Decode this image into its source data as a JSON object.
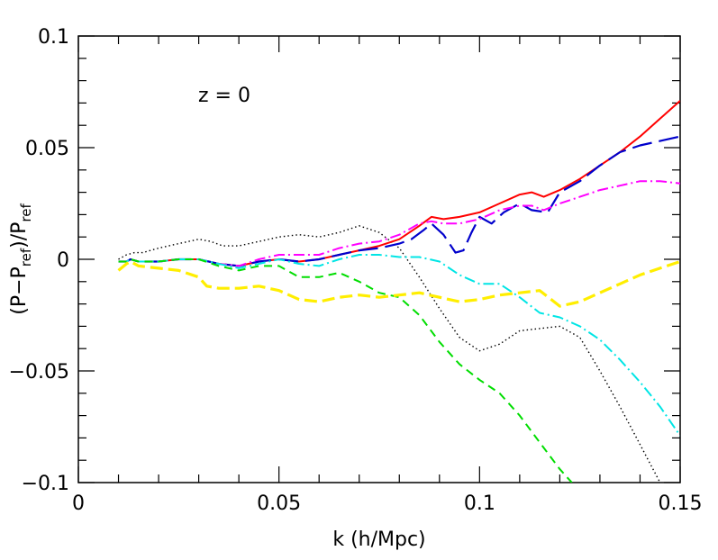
{
  "chart_data": {
    "type": "line",
    "annotation": "z = 0",
    "xlabel": "k (h/Mpc)",
    "ylabel": {
      "open": "(P",
      "minus": "−P",
      "sub_ref": "ref",
      "middle": ")/P",
      "sub_ref2": "ref"
    },
    "xlim": [
      0,
      0.15
    ],
    "ylim": [
      -0.1,
      0.1
    ],
    "xticks": [
      0,
      0.05,
      0.1,
      0.15
    ],
    "xtick_labels": [
      "0",
      "0.05",
      "0.1",
      "0.15"
    ],
    "yticks": [
      -0.1,
      -0.05,
      0,
      0.05,
      0.1
    ],
    "ytick_labels": [
      "−0.1",
      "−0.05",
      "0",
      "0.05",
      "0.1"
    ],
    "grid": false,
    "series": [
      {
        "color": "#000000",
        "style": "dotted",
        "x": [
          0.01,
          0.012,
          0.014,
          0.016,
          0.02,
          0.025,
          0.03,
          0.033,
          0.036,
          0.04,
          0.045,
          0.05,
          0.055,
          0.06,
          0.065,
          0.07,
          0.075,
          0.08,
          0.085,
          0.09,
          0.095,
          0.1,
          0.105,
          0.11,
          0.115,
          0.12,
          0.125,
          0.13,
          0.135,
          0.14,
          0.145
        ],
        "y": [
          0.0,
          0.002,
          0.003,
          0.003,
          0.005,
          0.007,
          0.009,
          0.008,
          0.006,
          0.006,
          0.008,
          0.01,
          0.011,
          0.01,
          0.012,
          0.015,
          0.012,
          0.005,
          -0.008,
          -0.022,
          -0.035,
          -0.041,
          -0.038,
          -0.032,
          -0.031,
          -0.03,
          -0.035,
          -0.05,
          -0.066,
          -0.083,
          -0.1
        ]
      },
      {
        "color": "#ff0000",
        "style": "solid",
        "x": [
          0.01,
          0.012,
          0.013,
          0.015,
          0.02,
          0.025,
          0.03,
          0.035,
          0.04,
          0.045,
          0.05,
          0.055,
          0.06,
          0.065,
          0.07,
          0.075,
          0.08,
          0.085,
          0.088,
          0.091,
          0.095,
          0.1,
          0.105,
          0.11,
          0.113,
          0.116,
          0.12,
          0.125,
          0.13,
          0.135,
          0.14,
          0.145,
          0.15
        ],
        "y": [
          -0.001,
          -0.001,
          0.0,
          -0.001,
          -0.001,
          0.0,
          0.0,
          -0.002,
          -0.003,
          -0.001,
          0.0,
          -0.001,
          0.0,
          0.002,
          0.004,
          0.006,
          0.009,
          0.015,
          0.019,
          0.018,
          0.019,
          0.021,
          0.025,
          0.029,
          0.03,
          0.028,
          0.031,
          0.036,
          0.042,
          0.048,
          0.055,
          0.063,
          0.071
        ]
      },
      {
        "color": "#0000cc",
        "style": "longdash",
        "x": [
          0.01,
          0.012,
          0.013,
          0.015,
          0.02,
          0.025,
          0.03,
          0.035,
          0.04,
          0.045,
          0.05,
          0.055,
          0.06,
          0.065,
          0.07,
          0.075,
          0.08,
          0.083,
          0.086,
          0.088,
          0.091,
          0.094,
          0.096,
          0.098,
          0.1,
          0.103,
          0.106,
          0.11,
          0.113,
          0.117,
          0.12,
          0.125,
          0.13,
          0.135,
          0.14,
          0.145,
          0.15
        ],
        "y": [
          -0.001,
          -0.001,
          0.0,
          -0.001,
          -0.001,
          0.0,
          0.0,
          -0.002,
          -0.003,
          -0.001,
          0.0,
          -0.001,
          0.0,
          0.002,
          0.004,
          0.005,
          0.007,
          0.009,
          0.013,
          0.016,
          0.011,
          0.003,
          0.004,
          0.012,
          0.019,
          0.016,
          0.021,
          0.025,
          0.022,
          0.021,
          0.03,
          0.035,
          0.042,
          0.048,
          0.051,
          0.053,
          0.055
        ]
      },
      {
        "color": "#ff00ff",
        "style": "dashdot",
        "x": [
          0.01,
          0.012,
          0.013,
          0.015,
          0.02,
          0.025,
          0.03,
          0.035,
          0.04,
          0.045,
          0.05,
          0.055,
          0.06,
          0.065,
          0.07,
          0.075,
          0.08,
          0.085,
          0.088,
          0.091,
          0.095,
          0.1,
          0.105,
          0.11,
          0.113,
          0.116,
          0.12,
          0.125,
          0.13,
          0.135,
          0.14,
          0.145,
          0.15
        ],
        "y": [
          -0.001,
          -0.001,
          0.0,
          -0.001,
          -0.001,
          0.0,
          0.0,
          -0.002,
          -0.003,
          0.0,
          0.002,
          0.002,
          0.002,
          0.005,
          0.007,
          0.008,
          0.011,
          0.016,
          0.017,
          0.016,
          0.016,
          0.018,
          0.022,
          0.024,
          0.024,
          0.022,
          0.025,
          0.028,
          0.031,
          0.033,
          0.035,
          0.035,
          0.034
        ]
      },
      {
        "color": "#00e5e5",
        "style": "dashdot",
        "x": [
          0.01,
          0.012,
          0.013,
          0.015,
          0.02,
          0.025,
          0.03,
          0.035,
          0.04,
          0.045,
          0.05,
          0.055,
          0.06,
          0.065,
          0.07,
          0.075,
          0.08,
          0.085,
          0.09,
          0.095,
          0.1,
          0.105,
          0.11,
          0.115,
          0.12,
          0.125,
          0.13,
          0.135,
          0.14,
          0.145,
          0.15
        ],
        "y": [
          -0.001,
          -0.001,
          0.0,
          -0.001,
          -0.001,
          0.0,
          0.0,
          -0.002,
          -0.004,
          -0.002,
          0.0,
          -0.002,
          -0.003,
          0.0,
          0.002,
          0.002,
          0.001,
          0.001,
          -0.001,
          -0.007,
          -0.011,
          -0.011,
          -0.017,
          -0.024,
          -0.026,
          -0.03,
          -0.036,
          -0.045,
          -0.055,
          -0.066,
          -0.079
        ]
      },
      {
        "color": "#00dd00",
        "style": "dashed",
        "x": [
          0.01,
          0.012,
          0.013,
          0.015,
          0.02,
          0.025,
          0.03,
          0.035,
          0.04,
          0.045,
          0.05,
          0.055,
          0.06,
          0.065,
          0.07,
          0.075,
          0.08,
          0.085,
          0.09,
          0.095,
          0.1,
          0.105,
          0.11,
          0.115,
          0.12,
          0.123
        ],
        "y": [
          -0.001,
          -0.001,
          0.0,
          -0.001,
          -0.001,
          0.0,
          0.0,
          -0.003,
          -0.005,
          -0.003,
          -0.003,
          -0.008,
          -0.008,
          -0.006,
          -0.01,
          -0.015,
          -0.017,
          -0.025,
          -0.037,
          -0.047,
          -0.054,
          -0.06,
          -0.07,
          -0.082,
          -0.094,
          -0.1
        ]
      },
      {
        "color": "#ffee00",
        "style": "dashed-thick",
        "x": [
          0.01,
          0.012,
          0.013,
          0.015,
          0.02,
          0.025,
          0.03,
          0.032,
          0.035,
          0.04,
          0.045,
          0.05,
          0.055,
          0.06,
          0.065,
          0.07,
          0.075,
          0.08,
          0.085,
          0.09,
          0.095,
          0.1,
          0.105,
          0.11,
          0.115,
          0.12,
          0.125,
          0.13,
          0.135,
          0.14,
          0.145,
          0.15
        ],
        "y": [
          -0.005,
          -0.002,
          -0.001,
          -0.003,
          -0.004,
          -0.005,
          -0.008,
          -0.012,
          -0.013,
          -0.013,
          -0.012,
          -0.014,
          -0.018,
          -0.019,
          -0.017,
          -0.016,
          -0.017,
          -0.016,
          -0.015,
          -0.017,
          -0.019,
          -0.018,
          -0.016,
          -0.015,
          -0.014,
          -0.021,
          -0.019,
          -0.015,
          -0.011,
          -0.007,
          -0.004,
          -0.001
        ]
      }
    ]
  }
}
